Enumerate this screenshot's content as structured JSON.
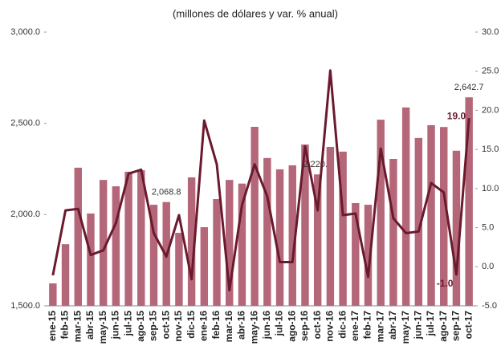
{
  "chart_data": {
    "type": "bar-line",
    "title": "(millones de dólares y var. % anual)",
    "categories": [
      "ene-15",
      "feb-15",
      "mar-15",
      "abr-15",
      "may-15",
      "jun-15",
      "jul-15",
      "ago-15",
      "sep-15",
      "oct-15",
      "nov-15",
      "dic-15",
      "ene-16",
      "feb-16",
      "mar-16",
      "abr-16",
      "may-16",
      "jun-16",
      "jul-16",
      "ago-16",
      "sep-16",
      "oct-16",
      "nov-16",
      "dic-16",
      "ene-17",
      "feb-17",
      "mar-17",
      "abr-17",
      "may-17",
      "jun-17",
      "jul-17",
      "ago-17",
      "sep-17",
      "oct-17"
    ],
    "series": [
      {
        "type": "bar",
        "color": "#b5677a",
        "values": [
          1623,
          1838,
          2257,
          2006,
          2190,
          2155,
          2235,
          2243,
          2054,
          2068.8,
          1900,
          2204,
          1931,
          2085,
          2190,
          2170,
          2481,
          2310,
          2248,
          2270,
          2384,
          2220.2,
          2371,
          2345,
          2063,
          2054,
          2520,
          2305,
          2587,
          2420,
          2490,
          2480,
          2350,
          2642.7
        ],
        "value_labels": [
          null,
          null,
          null,
          null,
          null,
          null,
          null,
          null,
          null,
          "2,068.8",
          null,
          null,
          null,
          null,
          null,
          null,
          null,
          null,
          null,
          null,
          null,
          "2,220.2",
          null,
          null,
          null,
          null,
          null,
          null,
          null,
          null,
          null,
          null,
          null,
          "2,642.7"
        ]
      },
      {
        "type": "line",
        "axis": "y2",
        "color": "#6b1a2e",
        "values": [
          -1.1,
          7.2,
          7.4,
          1.5,
          2.1,
          5.6,
          11.9,
          12.4,
          4.3,
          1.3,
          6.6,
          -1.6,
          18.7,
          13.1,
          -3.0,
          7.9,
          13.1,
          9.0,
          0.6,
          0.6,
          15.4,
          7.2,
          25.1,
          6.6,
          6.8,
          -1.3,
          15.1,
          6.2,
          4.3,
          4.5,
          10.7,
          9.5,
          -1.0,
          19.0
        ],
        "value_labels": [
          null,
          null,
          null,
          null,
          null,
          null,
          null,
          null,
          null,
          null,
          null,
          null,
          null,
          null,
          null,
          null,
          null,
          null,
          null,
          null,
          null,
          null,
          null,
          null,
          null,
          null,
          null,
          null,
          null,
          null,
          null,
          null,
          "-1.0",
          "19.0"
        ]
      }
    ],
    "ylim": [
      1500,
      3000
    ],
    "yticks": [
      {
        "value": 1500,
        "label": "1,500.0"
      },
      {
        "value": 2000,
        "label": "2,000.0"
      },
      {
        "value": 2500,
        "label": "2,500.0"
      },
      {
        "value": 3000,
        "label": "3,000.0"
      }
    ],
    "y2lim": [
      -5,
      30
    ],
    "y2ticks": [
      {
        "value": -5,
        "label": "-5.0"
      },
      {
        "value": 0,
        "label": "0.0"
      },
      {
        "value": 5,
        "label": "5.0"
      },
      {
        "value": 10,
        "label": "10.0"
      },
      {
        "value": 15,
        "label": "15.0"
      },
      {
        "value": 20,
        "label": "20.0"
      },
      {
        "value": 25,
        "label": "25.0"
      },
      {
        "value": 30,
        "label": "30.0"
      }
    ]
  }
}
